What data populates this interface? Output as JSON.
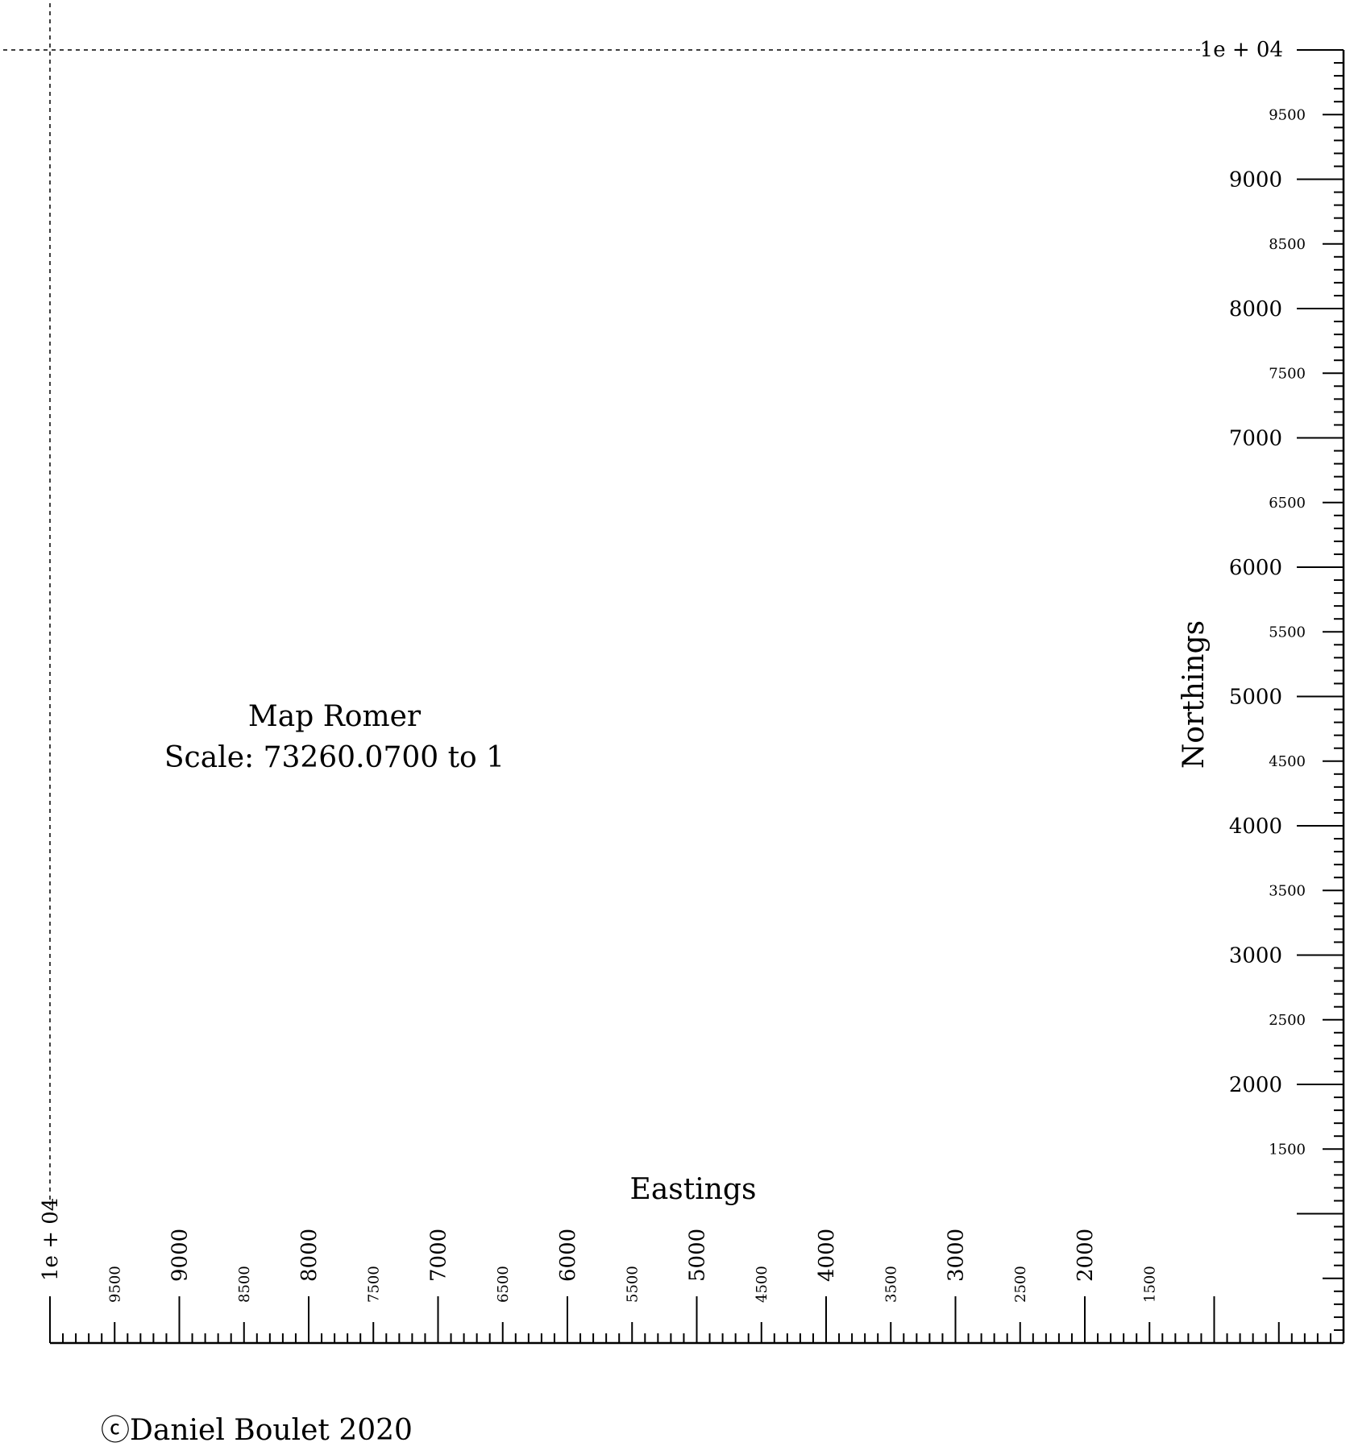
{
  "title": "Map Romer",
  "scale_text": "Scale: 73260.0700 to 1",
  "x_axis_label": "Eastings",
  "y_axis_label": "Northings",
  "copyright": "ⓒDaniel Boulet 2020",
  "max_label": "1e + 04",
  "easting_labels": [
    {
      "value": 9500,
      "text": "9500",
      "major": false
    },
    {
      "value": 9000,
      "text": "9000",
      "major": true
    },
    {
      "value": 8500,
      "text": "8500",
      "major": false
    },
    {
      "value": 8000,
      "text": "8000",
      "major": true
    },
    {
      "value": 7500,
      "text": "7500",
      "major": false
    },
    {
      "value": 7000,
      "text": "7000",
      "major": true
    },
    {
      "value": 6500,
      "text": "6500",
      "major": false
    },
    {
      "value": 6000,
      "text": "6000",
      "major": true
    },
    {
      "value": 5500,
      "text": "5500",
      "major": false
    },
    {
      "value": 5000,
      "text": "5000",
      "major": true
    },
    {
      "value": 4500,
      "text": "4500",
      "major": false
    },
    {
      "value": 4000,
      "text": "4000",
      "major": true
    },
    {
      "value": 3500,
      "text": "3500",
      "major": false
    },
    {
      "value": 3000,
      "text": "3000",
      "major": true
    },
    {
      "value": 2500,
      "text": "2500",
      "major": false
    },
    {
      "value": 2000,
      "text": "2000",
      "major": true
    },
    {
      "value": 1500,
      "text": "1500",
      "major": false
    }
  ],
  "northing_labels": [
    {
      "value": 9500,
      "text": "9500",
      "major": false
    },
    {
      "value": 9000,
      "text": "9000",
      "major": true
    },
    {
      "value": 8500,
      "text": "8500",
      "major": false
    },
    {
      "value": 8000,
      "text": "8000",
      "major": true
    },
    {
      "value": 7500,
      "text": "7500",
      "major": false
    },
    {
      "value": 7000,
      "text": "7000",
      "major": true
    },
    {
      "value": 6500,
      "text": "6500",
      "major": false
    },
    {
      "value": 6000,
      "text": "6000",
      "major": true
    },
    {
      "value": 5500,
      "text": "5500",
      "major": false
    },
    {
      "value": 5000,
      "text": "5000",
      "major": true
    },
    {
      "value": 4500,
      "text": "4500",
      "major": false
    },
    {
      "value": 4000,
      "text": "4000",
      "major": true
    },
    {
      "value": 3500,
      "text": "3500",
      "major": false
    },
    {
      "value": 3000,
      "text": "3000",
      "major": true
    },
    {
      "value": 2500,
      "text": "2500",
      "major": false
    },
    {
      "value": 2000,
      "text": "2000",
      "major": true
    },
    {
      "value": 1500,
      "text": "1500",
      "major": false
    }
  ],
  "scale_range": {
    "min": 0,
    "max": 10000,
    "minor_step": 100,
    "mid_step": 500,
    "major_step": 1000
  }
}
